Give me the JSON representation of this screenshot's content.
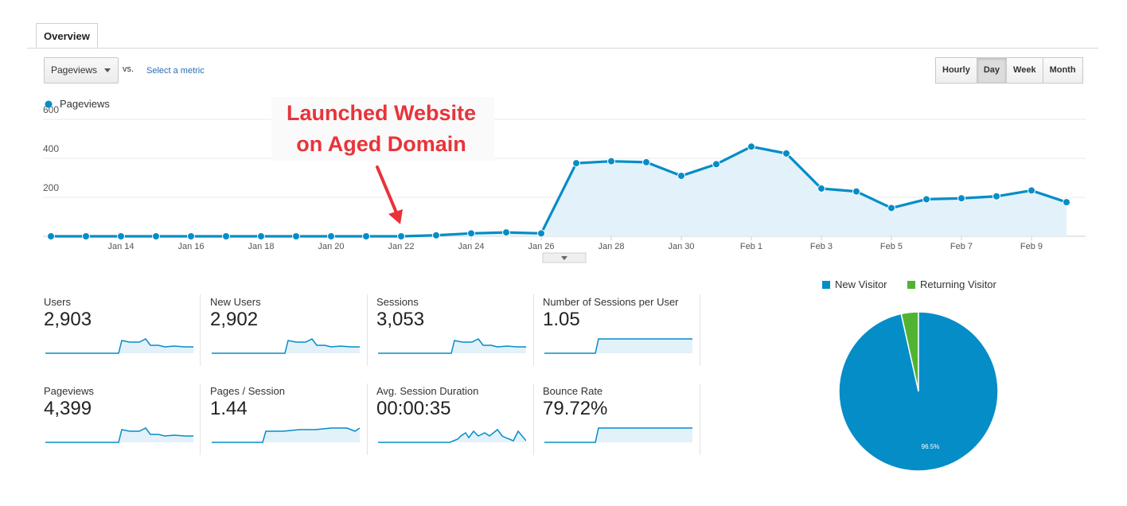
{
  "tabs": [
    {
      "label": "Overview"
    }
  ],
  "controls": {
    "metric": "Pageviews",
    "vs": "vs.",
    "select_metric": "Select a metric",
    "time_buttons": [
      "Hourly",
      "Day",
      "Week",
      "Month"
    ],
    "active_time": "Day"
  },
  "annotation": {
    "line1": "Launched Website",
    "line2": "on Aged Domain",
    "color": "#e8333a"
  },
  "chart_data": [
    {
      "type": "area",
      "series": [
        {
          "name": "Pageviews",
          "color": "#058dc7",
          "values": [
            0,
            0,
            0,
            0,
            0,
            0,
            0,
            0,
            0,
            0,
            0,
            5,
            15,
            20,
            15,
            375,
            385,
            380,
            310,
            370,
            460,
            425,
            245,
            230,
            145,
            190,
            195,
            205,
            235,
            175
          ]
        }
      ],
      "x": [
        "Jan 12",
        "Jan 13",
        "Jan 14",
        "Jan 15",
        "Jan 16",
        "Jan 17",
        "Jan 18",
        "Jan 19",
        "Jan 20",
        "Jan 21",
        "Jan 22",
        "Jan 23",
        "Jan 24",
        "Jan 25",
        "Jan 26",
        "Jan 27",
        "Jan 28",
        "Jan 29",
        "Jan 30",
        "Jan 31",
        "Feb 1",
        "Feb 2",
        "Feb 3",
        "Feb 4",
        "Feb 5",
        "Feb 6",
        "Feb 7",
        "Feb 8",
        "Feb 9",
        "Feb 10"
      ],
      "x_tick_labels": [
        "Jan 14",
        "Jan 16",
        "Jan 18",
        "Jan 20",
        "Jan 22",
        "Jan 24",
        "Jan 26",
        "Jan 28",
        "Jan 30",
        "Feb 1",
        "Feb 3",
        "Feb 5",
        "Feb 7",
        "Feb 9"
      ],
      "y_ticks": [
        200,
        400,
        600
      ],
      "ylim": [
        0,
        600
      ],
      "legend": "top-left",
      "grid": true
    },
    {
      "type": "pie",
      "labels": [
        "New Visitor",
        "Returning Visitor"
      ],
      "values": [
        96.5,
        3.5
      ],
      "colors": [
        "#058dc7",
        "#50b432"
      ],
      "slice_label": "96.5%",
      "legend": "top"
    }
  ],
  "scorecards": [
    {
      "label": "Users",
      "value": "2,903",
      "spark": [
        0,
        0,
        0,
        0,
        0,
        0,
        0,
        0,
        0,
        0,
        0,
        0,
        0,
        0,
        0,
        0,
        0,
        0,
        0,
        0,
        0,
        1,
        2,
        3,
        3,
        2,
        2,
        2,
        3,
        4,
        3,
        2,
        1,
        1,
        1,
        1,
        1
      ]
    },
    {
      "label": "New Users",
      "value": "2,902",
      "spark": [
        0,
        0,
        0,
        0,
        0,
        0,
        0,
        0,
        0,
        0,
        0,
        0,
        0,
        0,
        0,
        0,
        0,
        0,
        0,
        0,
        0,
        1,
        2,
        3,
        3,
        2,
        2,
        2,
        3,
        4,
        3,
        2,
        1,
        1,
        1,
        1,
        1
      ]
    },
    {
      "label": "Sessions",
      "value": "3,053",
      "spark": [
        0,
        0,
        0,
        0,
        0,
        0,
        0,
        0,
        0,
        0,
        0,
        0,
        0,
        0,
        0,
        0,
        0,
        0,
        0,
        0,
        0,
        1,
        2,
        3,
        3,
        2,
        2,
        2,
        3,
        4,
        3,
        2,
        1,
        1,
        1,
        1,
        1
      ]
    },
    {
      "label": "Number of Sessions per User",
      "value": "1.05",
      "spark": [
        0,
        0,
        0,
        0,
        0,
        0,
        0,
        0,
        0,
        0,
        0,
        0,
        0,
        0,
        0,
        0,
        0,
        0,
        0,
        0,
        0,
        0,
        0,
        0,
        0,
        0,
        0,
        0,
        0,
        0,
        0,
        0,
        0,
        0,
        0,
        0,
        0
      ]
    },
    {
      "label": "Pageviews",
      "value": "4,399",
      "spark": [
        0,
        0,
        0,
        0,
        0,
        0,
        0,
        0,
        0,
        0,
        0,
        0,
        0,
        0,
        0,
        0,
        0,
        0,
        0,
        0,
        0,
        1,
        2,
        3,
        3,
        2,
        2,
        2,
        3,
        4,
        3,
        2,
        1,
        1,
        1,
        1,
        1
      ]
    },
    {
      "label": "Pages / Session",
      "value": "1.44",
      "spark": [
        0,
        0,
        0,
        0,
        0,
        0,
        0,
        0,
        0,
        0,
        0,
        0,
        0,
        0,
        0,
        0,
        0,
        0,
        0,
        0,
        0,
        0,
        0,
        0,
        0,
        0,
        0,
        0,
        0,
        0,
        0,
        0,
        0,
        0,
        0,
        0,
        0
      ]
    },
    {
      "label": "Avg. Session Duration",
      "value": "00:00:35",
      "spark": [
        0,
        0,
        0,
        0,
        0,
        0,
        0,
        0,
        0,
        0,
        0,
        0,
        0,
        0,
        0,
        0,
        0,
        0,
        0,
        0,
        0,
        0,
        0,
        0,
        0,
        0,
        0,
        0,
        0,
        0,
        0,
        0,
        0,
        0,
        0,
        0,
        0
      ]
    },
    {
      "label": "Bounce Rate",
      "value": "79.72%",
      "spark": [
        0,
        0,
        0,
        0,
        0,
        0,
        0,
        0,
        0,
        0,
        0,
        0,
        0,
        0,
        0,
        0,
        0,
        0,
        0,
        0,
        0,
        0,
        0,
        0,
        0,
        0,
        0,
        0,
        0,
        0,
        0,
        0,
        0,
        0,
        0,
        0,
        0
      ]
    }
  ]
}
